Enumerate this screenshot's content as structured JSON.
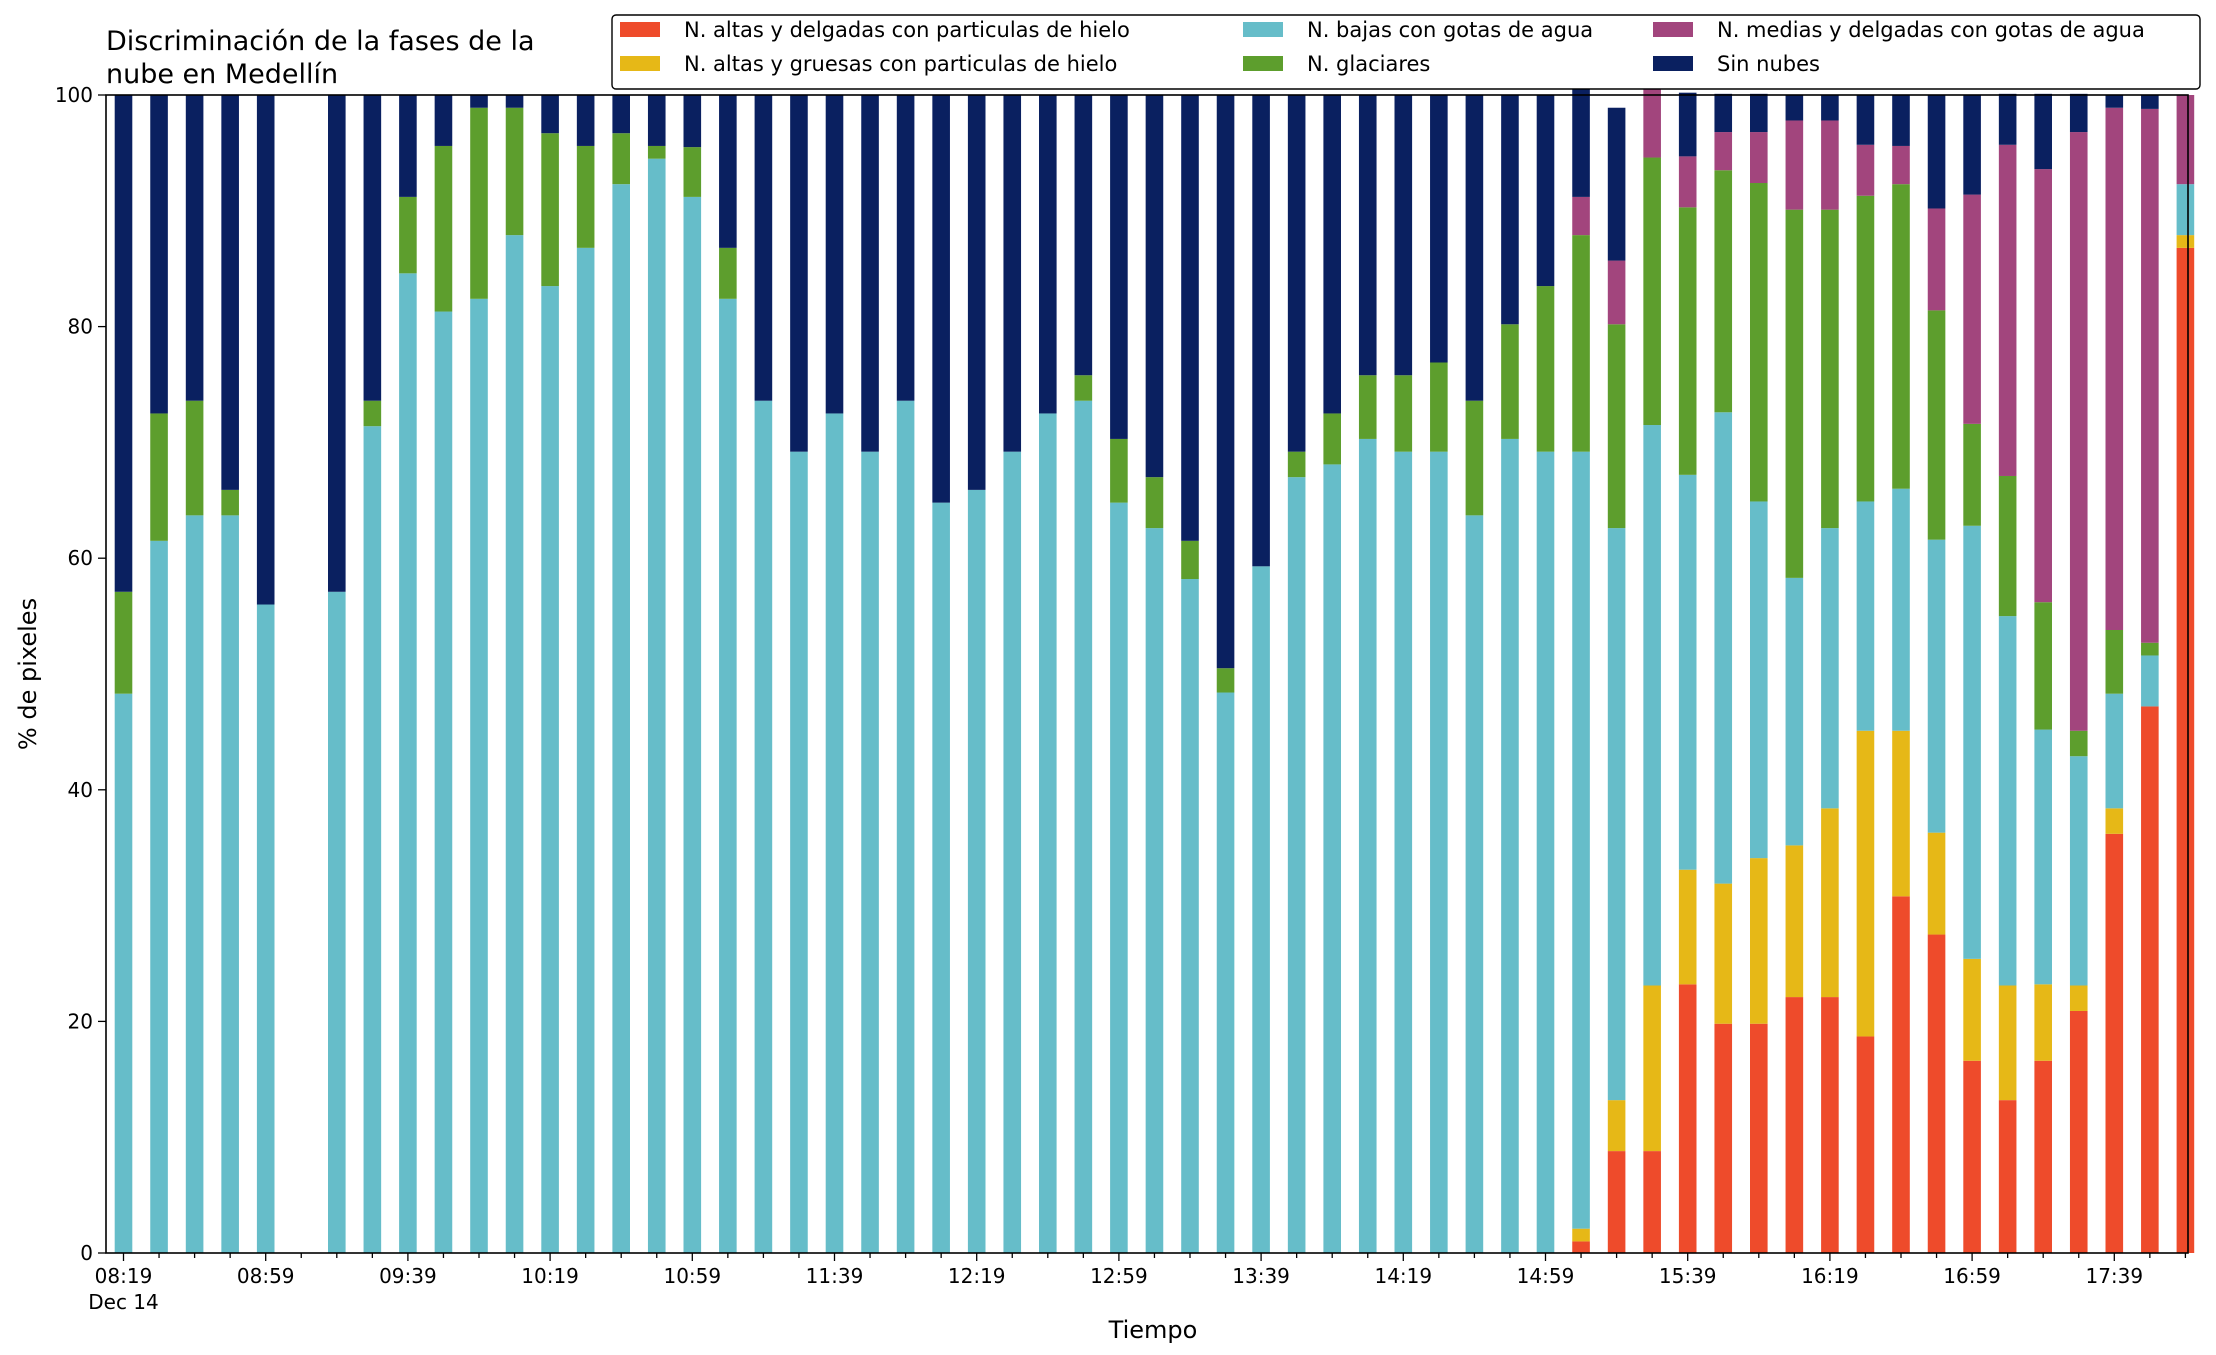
{
  "chart_data": {
    "type": "bar",
    "stacked": true,
    "title_lines": [
      "Discriminación de la fases de la",
      "nube en Medellín"
    ],
    "xlabel": "Tiempo",
    "ylabel": "% de pixeles",
    "ylim": [
      0,
      100
    ],
    "yticks": [
      "0",
      "20",
      "40",
      "60",
      "80",
      "100"
    ],
    "xtick_labels": [
      "08:19",
      "08:59",
      "09:39",
      "10:19",
      "10:59",
      "11:39",
      "12:19",
      "12:59",
      "13:39",
      "14:19",
      "14:59",
      "15:39",
      "16:19",
      "16:59",
      "17:39"
    ],
    "xtick_sublabel": "Dec 14",
    "x_start": "08:19",
    "x_step_minutes": 10,
    "legend_position": "top-right",
    "grid": false,
    "series": [
      {
        "name": "N. altas y delgadas con particulas de hielo",
        "color": "#ee4b2b",
        "values": [
          0,
          0,
          0,
          0,
          0,
          0,
          0,
          0,
          0,
          0,
          0,
          0,
          0,
          0,
          0,
          0,
          0,
          0,
          0,
          0,
          0,
          0,
          0,
          0,
          0,
          0,
          0,
          0,
          0,
          0,
          0,
          0,
          0,
          0,
          0,
          0,
          0,
          0,
          0,
          0,
          0,
          1,
          8.8,
          8.8,
          23.2,
          19.8,
          19.8,
          22.1,
          22.1,
          18.7,
          30.8,
          27.5,
          16.6,
          13.2,
          16.6,
          20.9,
          36.2,
          47.2,
          86.8
        ]
      },
      {
        "name": "N. altas y gruesas con particulas de hielo",
        "color": "#e6b817",
        "values": [
          0,
          0,
          0,
          0,
          0,
          0,
          0,
          0,
          0,
          0,
          0,
          0,
          0,
          0,
          0,
          0,
          0,
          0,
          0,
          0,
          0,
          0,
          0,
          0,
          0,
          0,
          0,
          0,
          0,
          0,
          0,
          0,
          0,
          0,
          0,
          0,
          0,
          0,
          0,
          0,
          0,
          1.1,
          4.4,
          14.3,
          9.9,
          12.1,
          14.3,
          13.1,
          16.3,
          26.4,
          14.3,
          8.8,
          8.8,
          9.9,
          6.6,
          2.2,
          2.2,
          0,
          1.1
        ]
      },
      {
        "name": "N. bajas con gotas de agua",
        "color": "#66bdc9",
        "values": [
          48.3,
          61.5,
          63.7,
          63.7,
          56,
          0,
          57.1,
          71.4,
          84.6,
          81.3,
          82.4,
          87.9,
          83.5,
          86.8,
          92.3,
          94.5,
          91.2,
          82.4,
          73.6,
          69.2,
          72.5,
          69.2,
          73.6,
          64.8,
          65.9,
          69.2,
          72.5,
          73.6,
          64.8,
          62.6,
          58.2,
          48.4,
          59.3,
          67,
          68.1,
          70.3,
          69.2,
          69.2,
          63.7,
          70.3,
          69.2,
          67.1,
          49.4,
          48.4,
          34.1,
          40.7,
          30.8,
          23.1,
          24.2,
          19.8,
          20.9,
          25.3,
          37.4,
          31.9,
          22,
          19.8,
          9.9,
          4.4,
          4.4
        ]
      },
      {
        "name": "N. glaciares",
        "color": "#5d9e2d",
        "values": [
          8.8,
          11,
          9.9,
          2.2,
          0,
          0,
          0,
          2.2,
          6.6,
          14.3,
          16.5,
          11,
          13.2,
          8.8,
          4.4,
          1.1,
          4.3,
          4.4,
          0,
          0,
          0,
          0,
          0,
          0,
          0,
          0,
          0,
          2.2,
          5.5,
          4.4,
          3.3,
          2.1,
          0,
          2.2,
          4.4,
          5.5,
          6.6,
          7.7,
          9.9,
          9.9,
          14.3,
          18.7,
          17.6,
          23.1,
          23.1,
          20.9,
          27.5,
          31.8,
          27.5,
          26.4,
          26.3,
          19.8,
          8.8,
          12.1,
          11,
          2.2,
          5.5,
          1.1,
          0
        ]
      },
      {
        "name": "N. medias y delgadas con gotas de agua",
        "color": "#a2457d",
        "values": [
          0,
          0,
          0,
          0,
          0,
          0,
          0,
          0,
          0,
          0,
          0,
          0,
          0,
          0,
          0,
          0,
          0,
          0,
          0,
          0,
          0,
          0,
          0,
          0,
          0,
          0,
          0,
          0,
          0,
          0,
          0,
          0,
          0,
          0,
          0,
          0,
          0,
          0,
          0,
          0,
          0,
          3.3,
          5.5,
          7.7,
          4.4,
          3.3,
          4.4,
          7.7,
          7.7,
          4.4,
          3.3,
          8.8,
          19.8,
          28.6,
          37.4,
          51.7,
          45.1,
          46.1,
          7.7
        ]
      },
      {
        "name": "Sin nubes",
        "color": "#0a2060",
        "values": [
          42.9,
          27.5,
          26.4,
          34.1,
          44,
          0,
          42.9,
          26.4,
          8.8,
          4.4,
          1.1,
          1.1,
          3.3,
          4.4,
          3.3,
          4.4,
          4.5,
          13.2,
          26.4,
          30.8,
          27.5,
          30.8,
          26.4,
          35.2,
          34.1,
          30.8,
          27.5,
          24.2,
          29.7,
          33,
          38.5,
          49.5,
          40.7,
          30.8,
          27.5,
          24.2,
          24.2,
          23.1,
          26.4,
          19.8,
          16.5,
          13.1,
          13.2,
          3.3,
          5.5,
          3.3,
          3.3,
          2.2,
          2.2,
          4.3,
          4.4,
          9.8,
          8.6,
          4.4,
          6.5,
          3.3,
          1.1,
          1.2,
          0
        ]
      }
    ]
  }
}
